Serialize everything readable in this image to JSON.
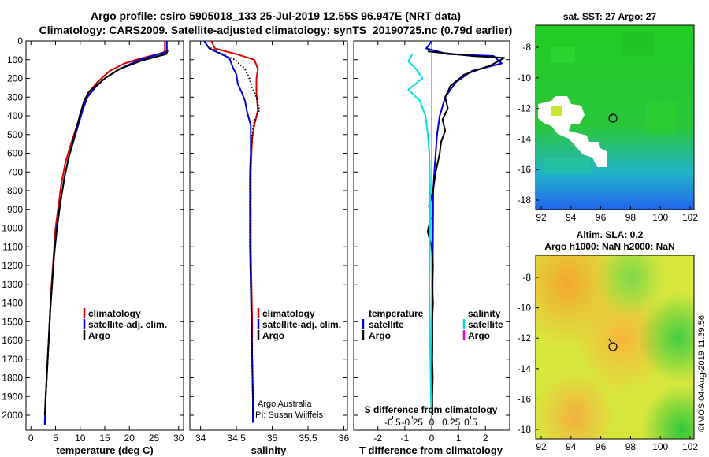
{
  "header": {
    "title_line1": "Argo profile: csiro 5905018_133 25-Jul-2019 12.55S 96.947E (NRT data)",
    "title_line2": "Climatology: CARS2009. Satellite-adjusted climatology: synTS_20190725.nc (0.79d earlier)"
  },
  "footer": {
    "timestamp": "©IMOS 04-Aug-2019 11:39:56"
  },
  "colors": {
    "climatology": "#dd0000",
    "satellite": "#0000dd",
    "argo": "#000000",
    "s_satellite": "#00e0e0",
    "s_argo": "#e000e0"
  },
  "chart_data": [
    {
      "id": "temperature",
      "type": "line",
      "xlabel": "temperature (deg C)",
      "ylabel": "",
      "xlim": [
        -1,
        31
      ],
      "ylim": [
        0,
        2080
      ],
      "y_inverted": true,
      "xticks": [
        0,
        5,
        10,
        15,
        20,
        25,
        30
      ],
      "xtick_labels": [
        "0",
        "5",
        "10",
        "15",
        "20",
        "25",
        "30"
      ],
      "yticks": [
        0,
        100,
        200,
        300,
        400,
        500,
        600,
        700,
        800,
        900,
        1000,
        1100,
        1200,
        1300,
        1400,
        1500,
        1600,
        1700,
        1800,
        1900,
        2000
      ],
      "legend": {
        "position": "middle-right",
        "entries": [
          "climatology",
          "satellite-adj. clim.",
          "Argo"
        ]
      },
      "series": [
        {
          "name": "climatology",
          "style": "solid",
          "points": [
            [
              27.2,
              0
            ],
            [
              27.2,
              50
            ],
            [
              27.0,
              60
            ],
            [
              26,
              68
            ],
            [
              22,
              95
            ],
            [
              19,
              120
            ],
            [
              16,
              160
            ],
            [
              13.5,
              220
            ],
            [
              12.2,
              260
            ],
            [
              11,
              320
            ],
            [
              10,
              400
            ],
            [
              9,
              480
            ],
            [
              8,
              560
            ],
            [
              7,
              650
            ],
            [
              6.2,
              760
            ],
            [
              5.5,
              900
            ],
            [
              5,
              1000
            ],
            [
              4.6,
              1150
            ],
            [
              4.2,
              1300
            ],
            [
              3.9,
              1450
            ],
            [
              3.6,
              1600
            ],
            [
              3.3,
              1750
            ],
            [
              3.0,
              1900
            ],
            [
              2.8,
              2050
            ]
          ]
        },
        {
          "name": "satellite-adj. clim.",
          "style": "solid",
          "points": [
            [
              27.6,
              0
            ],
            [
              27.6,
              50
            ],
            [
              27.4,
              60
            ],
            [
              26,
              70
            ],
            [
              22,
              100
            ],
            [
              18,
              150
            ],
            [
              15,
              200
            ],
            [
              13,
              250
            ],
            [
              11.5,
              300
            ],
            [
              10.5,
              370
            ],
            [
              9.6,
              450
            ],
            [
              8.6,
              540
            ],
            [
              7.6,
              630
            ],
            [
              6.8,
              730
            ],
            [
              6.0,
              860
            ],
            [
              5.2,
              1000
            ],
            [
              4.7,
              1150
            ],
            [
              4.3,
              1300
            ],
            [
              3.9,
              1450
            ],
            [
              3.6,
              1600
            ],
            [
              3.3,
              1750
            ],
            [
              3.0,
              1900
            ],
            [
              2.8,
              2050
            ]
          ]
        },
        {
          "name": "Argo",
          "style": "solid",
          "points": [
            [
              27.8,
              50
            ],
            [
              27.5,
              70
            ],
            [
              26,
              80
            ],
            [
              22.5,
              105
            ],
            [
              18,
              150
            ],
            [
              15,
              200
            ],
            [
              13.2,
              240
            ],
            [
              11.8,
              270
            ],
            [
              10.8,
              320
            ],
            [
              10,
              390
            ],
            [
              9.4,
              450
            ],
            [
              8.5,
              540
            ],
            [
              7.6,
              630
            ],
            [
              6.8,
              730
            ],
            [
              6.0,
              860
            ],
            [
              5.3,
              1000
            ],
            [
              4.7,
              1150
            ],
            [
              4.3,
              1300
            ],
            [
              3.9,
              1450
            ],
            [
              3.6,
              1600
            ],
            [
              3.3,
              1750
            ],
            [
              3.0,
              1900
            ],
            [
              2.8,
              2000
            ]
          ]
        }
      ]
    },
    {
      "id": "salinity",
      "type": "line",
      "xlabel": "salinity",
      "ylabel": "",
      "xlim": [
        33.85,
        36.05
      ],
      "ylim": [
        0,
        2080
      ],
      "y_inverted": true,
      "xticks": [
        34,
        34.5,
        35,
        35.5,
        36
      ],
      "xtick_labels": [
        "34",
        "34.5",
        "35",
        "35.5",
        "36"
      ],
      "legend": {
        "position": "middle-right",
        "entries": [
          "climatology",
          "satellite-adj. clim.",
          "Argo"
        ]
      },
      "annotation": [
        "Argo Australia",
        "PI: Susan Wijffels"
      ],
      "series": [
        {
          "name": "climatology",
          "style": "solid",
          "points": [
            [
              34.15,
              0
            ],
            [
              34.2,
              40
            ],
            [
              34.5,
              70
            ],
            [
              34.75,
              100
            ],
            [
              34.8,
              150
            ],
            [
              34.78,
              200
            ],
            [
              34.78,
              280
            ],
            [
              34.8,
              370
            ],
            [
              34.75,
              450
            ],
            [
              34.72,
              520
            ],
            [
              34.71,
              600
            ],
            [
              34.7,
              700
            ],
            [
              34.7,
              900
            ],
            [
              34.7,
              1100
            ],
            [
              34.71,
              1300
            ],
            [
              34.72,
              1500
            ],
            [
              34.72,
              1700
            ],
            [
              34.73,
              1900
            ],
            [
              34.73,
              2040
            ]
          ]
        },
        {
          "name": "satellite-adj. clim.",
          "style": "solid",
          "points": [
            [
              34.05,
              0
            ],
            [
              34.12,
              40
            ],
            [
              34.4,
              90
            ],
            [
              34.45,
              140
            ],
            [
              34.5,
              180
            ],
            [
              34.52,
              230
            ],
            [
              34.58,
              280
            ],
            [
              34.62,
              320
            ],
            [
              34.65,
              380
            ],
            [
              34.7,
              450
            ],
            [
              34.7,
              520
            ],
            [
              34.7,
              600
            ],
            [
              34.69,
              700
            ],
            [
              34.69,
              900
            ],
            [
              34.69,
              1100
            ],
            [
              34.7,
              1300
            ],
            [
              34.71,
              1500
            ],
            [
              34.72,
              1700
            ],
            [
              34.73,
              1900
            ],
            [
              34.73,
              2040
            ]
          ]
        },
        {
          "name": "Argo",
          "style": "dotted",
          "points": [
            [
              34.1,
              30
            ],
            [
              34.25,
              60
            ],
            [
              34.48,
              100
            ],
            [
              34.62,
              150
            ],
            [
              34.68,
              200
            ],
            [
              34.72,
              250
            ],
            [
              34.78,
              300
            ],
            [
              34.82,
              370
            ],
            [
              34.75,
              430
            ],
            [
              34.72,
              500
            ],
            [
              34.7,
              600
            ],
            [
              34.69,
              700
            ],
            [
              34.69,
              900
            ],
            [
              34.69,
              1100
            ],
            [
              34.7,
              1300
            ],
            [
              34.71,
              1500
            ],
            [
              34.72,
              1700
            ],
            [
              34.73,
              1900
            ],
            [
              34.73,
              2000
            ]
          ]
        }
      ]
    },
    {
      "id": "difference",
      "type": "line",
      "xlabel": "T difference from climatology",
      "xlabel_top": "S difference from climatology",
      "xlim": [
        -2.9,
        2.9
      ],
      "ylim": [
        0,
        2080
      ],
      "y_inverted": true,
      "xticks": [
        -2,
        -1,
        0,
        1,
        2
      ],
      "xtick_labels": [
        "-2",
        "-1",
        "0",
        "1",
        "2"
      ],
      "s_ticks": [
        -0.5,
        -0.25,
        0,
        0.25,
        0.5
      ],
      "s_tick_labels": [
        "-0.5",
        "-0.25",
        "0",
        "0.25",
        "0.5"
      ],
      "legend": {
        "position": "lower-center",
        "left_title": "temperature",
        "right_title": "salinity",
        "entries_left": [
          "satellite",
          "Argo"
        ],
        "entries_right": [
          "satellite",
          "Argo"
        ]
      },
      "series": [
        {
          "name": "temperature satellite",
          "points": [
            [
              0,
              0
            ],
            [
              -0.2,
              40
            ],
            [
              0.6,
              70
            ],
            [
              2.3,
              80
            ],
            [
              2.6,
              120
            ],
            [
              1.5,
              160
            ],
            [
              0.9,
              220
            ],
            [
              0.5,
              300
            ],
            [
              0.3,
              400
            ],
            [
              0.2,
              500
            ],
            [
              0.15,
              600
            ],
            [
              0.1,
              700
            ],
            [
              0.06,
              800
            ],
            [
              0.05,
              1000
            ],
            [
              0.04,
              1200
            ],
            [
              0.03,
              1400
            ],
            [
              0.02,
              1600
            ],
            [
              0.01,
              1800
            ],
            [
              0,
              2000
            ]
          ]
        },
        {
          "name": "temperature Argo",
          "points": [
            [
              -0.15,
              55
            ],
            [
              1.5,
              80
            ],
            [
              2.7,
              90
            ],
            [
              2.2,
              130
            ],
            [
              1.2,
              180
            ],
            [
              0.7,
              240
            ],
            [
              0.5,
              300
            ],
            [
              0.6,
              360
            ],
            [
              0.4,
              420
            ],
            [
              0.5,
              480
            ],
            [
              0.35,
              540
            ],
            [
              0.3,
              600
            ],
            [
              0.15,
              700
            ],
            [
              0.05,
              800
            ],
            [
              -0.1,
              880
            ],
            [
              -0.05,
              950
            ],
            [
              -0.15,
              1020
            ],
            [
              0.0,
              1100
            ],
            [
              0.05,
              1200
            ],
            [
              0.02,
              1300
            ],
            [
              0.05,
              1400
            ],
            [
              0.02,
              1500
            ],
            [
              0.03,
              1600
            ],
            [
              0.02,
              1700
            ],
            [
              0.04,
              1800
            ],
            [
              0.02,
              1900
            ],
            [
              0.03,
              2000
            ]
          ]
        },
        {
          "name": "salinity satellite",
          "points": [
            [
              -0.25,
              70
            ],
            [
              -0.3,
              110
            ],
            [
              -0.2,
              150
            ],
            [
              -0.12,
              200
            ],
            [
              -0.3,
              260
            ],
            [
              -0.15,
              320
            ],
            [
              -0.08,
              400
            ],
            [
              -0.05,
              500
            ],
            [
              -0.03,
              600
            ],
            [
              -0.02,
              800
            ],
            [
              -0.02,
              1000
            ],
            [
              -0.03,
              1300
            ],
            [
              -0.02,
              1600
            ],
            [
              -0.01,
              1900
            ],
            [
              0,
              2000
            ]
          ]
        },
        {
          "name": "salinity Argo",
          "points": []
        }
      ]
    }
  ],
  "maps": [
    {
      "id": "sst-map",
      "title": "sat. SST: 27 Argo: 27",
      "xticks": [
        "92",
        "94",
        "96",
        "98",
        "100",
        "102"
      ],
      "yticks": [
        "-8",
        "-10",
        "-12",
        "-14",
        "-16",
        "-18"
      ]
    },
    {
      "id": "sla-map",
      "title_line1": "Altim. SLA: 0.2",
      "title_line2": "Argo h1000: NaN h2000: NaN",
      "xticks": [
        "92",
        "94",
        "96",
        "98",
        "100",
        "102"
      ],
      "yticks": [
        "-8",
        "-10",
        "-12",
        "-14",
        "-16",
        "-18"
      ]
    }
  ],
  "y_axis_labels": [
    "0",
    "100",
    "200",
    "300",
    "400",
    "500",
    "600",
    "700",
    "800",
    "900",
    "1000",
    "1100",
    "1200",
    "1300",
    "1400",
    "1500",
    "1600",
    "1700",
    "1800",
    "1900",
    "2000"
  ]
}
